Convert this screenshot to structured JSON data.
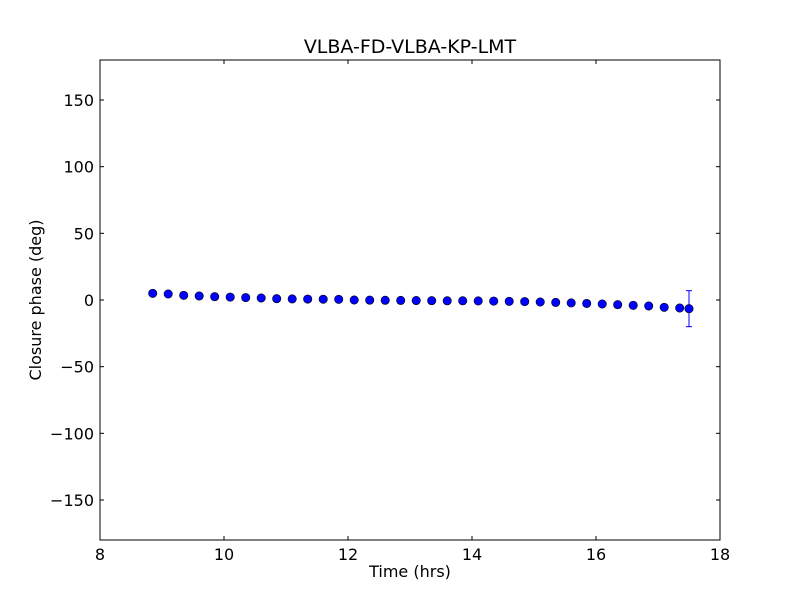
{
  "chart_data": {
    "type": "scatter",
    "title": "VLBA-FD-VLBA-KP-LMT",
    "xlabel": "Time (hrs)",
    "ylabel": "Closure phase (deg)",
    "xlim": [
      8,
      18
    ],
    "ylim": [
      -180,
      180
    ],
    "xticks": [
      8,
      10,
      12,
      14,
      16,
      18
    ],
    "yticks": [
      -150,
      -100,
      -50,
      0,
      50,
      100,
      150
    ],
    "ytick_labels": [
      "−150",
      "−100",
      "−50",
      "0",
      "50",
      "100",
      "150"
    ],
    "grid": false,
    "marker_color": "#0000ff",
    "series": [
      {
        "x": [
          8.85,
          9.1,
          9.35,
          9.6,
          9.85,
          10.1,
          10.35,
          10.6,
          10.85,
          11.1,
          11.35,
          11.6,
          11.85,
          12.1,
          12.35,
          12.6,
          12.85,
          13.1,
          13.35,
          13.6,
          13.85,
          14.1,
          14.35,
          14.6,
          14.85,
          15.1,
          15.35,
          15.6,
          15.85,
          16.1,
          16.35,
          16.6,
          16.85,
          17.1,
          17.35,
          17.5
        ],
        "y": [
          5,
          4.5,
          3.5,
          3,
          2.5,
          2.2,
          1.8,
          1.5,
          1,
          0.8,
          0.7,
          0.6,
          0.5,
          0,
          -0.1,
          -0.2,
          -0.3,
          -0.4,
          -0.5,
          -0.6,
          -0.6,
          -0.7,
          -0.8,
          -1,
          -1.2,
          -1.5,
          -1.8,
          -2.2,
          -2.6,
          -3,
          -3.5,
          -4,
          -4.5,
          -5.5,
          -6,
          -6.5
        ],
        "yerr": [
          0.8,
          0.8,
          0.8,
          0.8,
          0.8,
          0.8,
          0.8,
          0.8,
          0.8,
          0.8,
          0.8,
          0.8,
          0.8,
          0.8,
          0.8,
          0.8,
          0.8,
          0.8,
          0.8,
          0.8,
          0.8,
          0.8,
          0.8,
          0.8,
          0.8,
          0.8,
          0.8,
          0.8,
          0.8,
          0.8,
          0.8,
          0.8,
          0.8,
          0.8,
          0.8,
          13.5
        ]
      }
    ]
  }
}
